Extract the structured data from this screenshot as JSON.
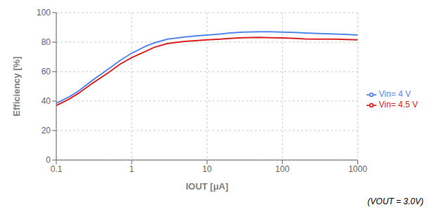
{
  "chart_data": {
    "type": "line",
    "xlabel": "IOUT [μA]",
    "ylabel": "Efficiency [%]",
    "annotation": "(VOUT = 3.0V)",
    "log": "x",
    "xlim": [
      0.1,
      1000
    ],
    "ylim": [
      0,
      100
    ],
    "xticks": [
      0.1,
      1,
      10,
      100,
      1000
    ],
    "yticks": [
      0,
      20,
      40,
      60,
      80,
      100
    ],
    "grid": true,
    "legend": "right",
    "x": [
      0.1,
      0.15,
      0.2,
      0.3,
      0.5,
      0.7,
      1.0,
      1.5,
      2.0,
      3.0,
      5.0,
      7.0,
      10.0,
      15.0,
      20.0,
      30.0,
      50.0,
      70.0,
      100.0,
      150.0,
      200.0,
      300.0,
      500.0,
      700.0,
      1000.0
    ],
    "series": [
      {
        "name": "Vin= 4 V",
        "color": "#5588ee",
        "values": [
          38.5,
          43.0,
          47.0,
          54.0,
          62.0,
          67.5,
          72.5,
          77.0,
          79.5,
          82.0,
          83.5,
          84.2,
          84.8,
          85.5,
          86.2,
          86.8,
          87.0,
          87.0,
          86.8,
          86.5,
          86.2,
          85.8,
          85.5,
          85.2,
          84.8
        ]
      },
      {
        "name": "Vin= 4.5 V",
        "color": "#dd2222",
        "values": [
          37.0,
          41.5,
          45.5,
          52.0,
          59.5,
          65.0,
          69.5,
          73.5,
          76.5,
          79.0,
          80.5,
          81.0,
          81.5,
          82.0,
          82.5,
          83.0,
          83.2,
          83.0,
          82.8,
          82.5,
          82.2,
          82.0,
          82.0,
          81.8,
          81.5
        ]
      }
    ]
  }
}
